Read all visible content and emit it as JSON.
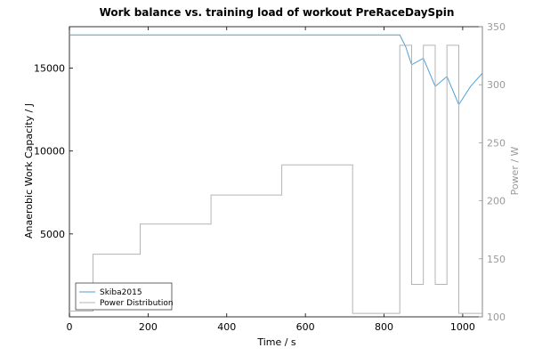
{
  "chart_data": {
    "type": "line",
    "title": "Work balance vs. training load of workout  PreRaceDaySpin",
    "xlabel": "Time / s",
    "ylabel_left": "Anaerobic Work Capacity / J",
    "ylabel_right": "Power / W",
    "xlim": [
      0,
      1050
    ],
    "ylim_left": [
      0,
      17500
    ],
    "ylim_right": [
      100,
      350
    ],
    "xticks": [
      0,
      200,
      400,
      600,
      800,
      1000
    ],
    "yticks_left": [
      5000,
      10000,
      15000
    ],
    "yticks_right": [
      100,
      150,
      200,
      250,
      300,
      350
    ],
    "grid": false,
    "legend_position": "bottom-left",
    "series": [
      {
        "name": "Skiba2015",
        "axis": "left",
        "color": "#4f9fd6",
        "x": [
          0,
          840,
          855,
          870,
          900,
          930,
          960,
          990,
          1020,
          1050
        ],
        "y": [
          17000,
          17000,
          16300,
          15200,
          15600,
          13900,
          14500,
          12800,
          13900,
          14700
        ]
      },
      {
        "name": "Power Distribution",
        "axis": "right",
        "color": "#b4b4b4",
        "x": [
          0,
          60,
          60,
          180,
          180,
          360,
          360,
          540,
          540,
          720,
          720,
          840,
          840,
          870,
          870,
          900,
          900,
          930,
          930,
          960,
          960,
          990,
          990,
          1050
        ],
        "y": [
          105,
          105,
          154,
          154,
          180,
          180,
          205,
          205,
          231,
          231,
          103,
          103,
          334,
          334,
          128,
          128,
          334,
          334,
          128,
          128,
          334,
          334,
          103,
          103
        ]
      }
    ]
  }
}
